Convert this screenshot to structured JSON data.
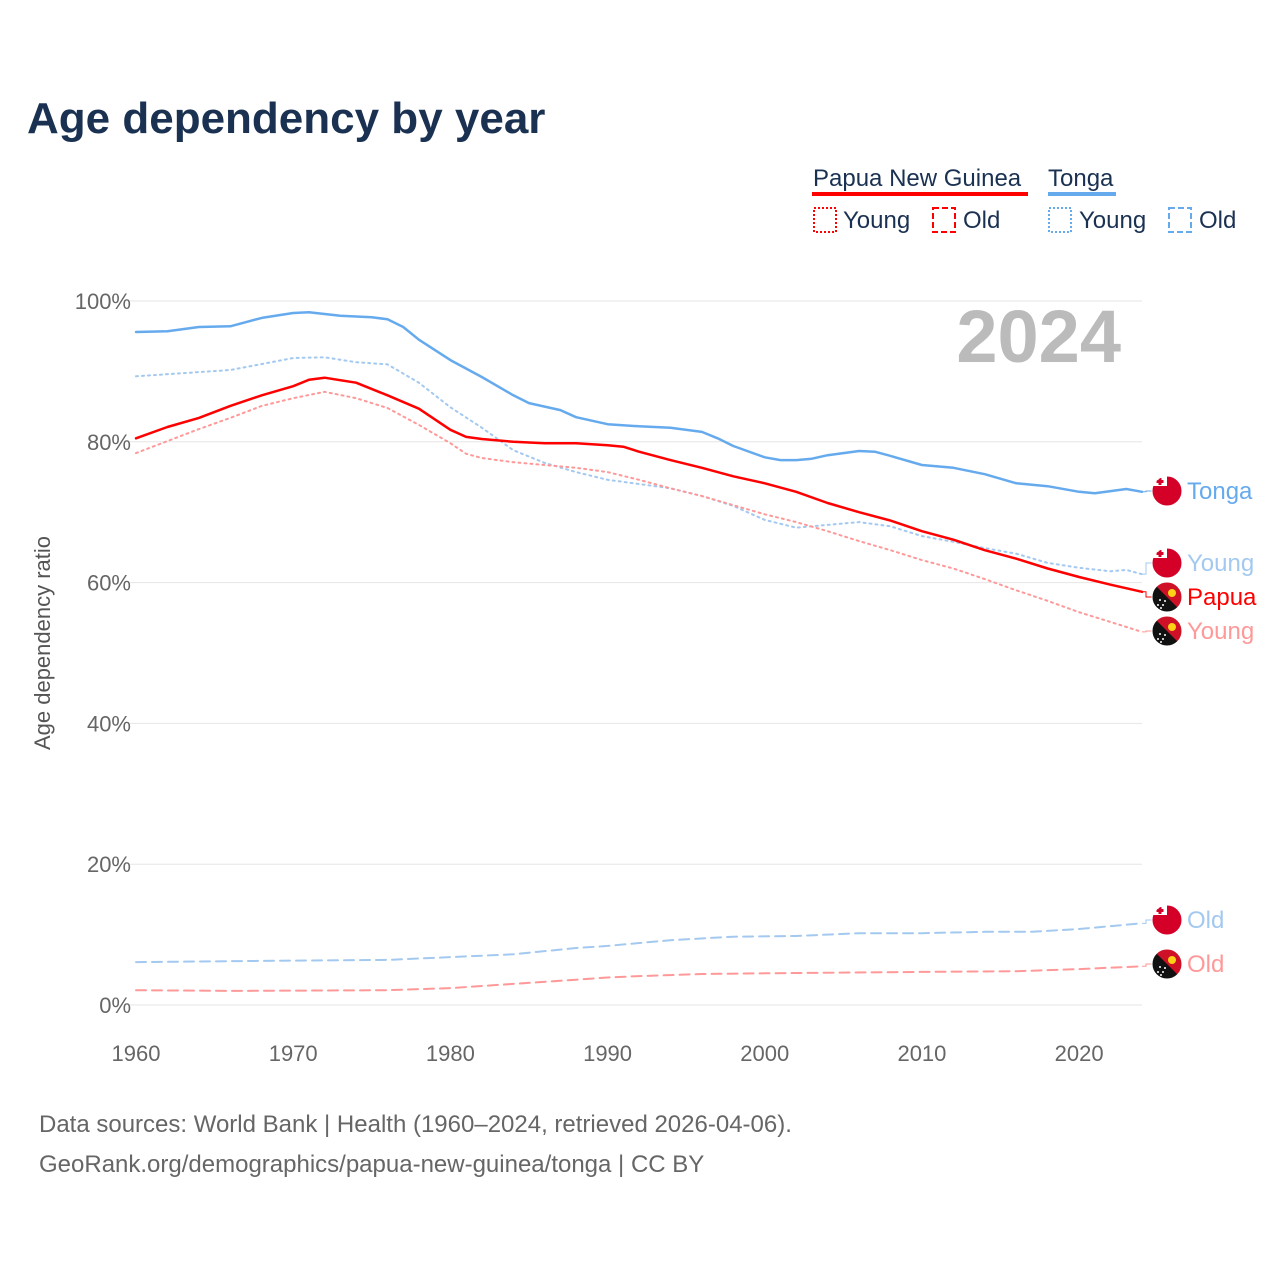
{
  "title": "Age dependency by year",
  "legend": {
    "groups": [
      {
        "name": "Papua New Guinea",
        "color": "#ff0000",
        "young": "Young",
        "old": "Old"
      },
      {
        "name": "Tonga",
        "color": "#66aaee",
        "young": "Young",
        "old": "Old"
      }
    ]
  },
  "year_label": "2024",
  "footer": {
    "line1": "Data sources: World Bank | Health (1960–2024, retrieved 2026-04-06).",
    "line2": "GeoRank.org/demographics/papua-new-guinea/tonga | CC BY"
  },
  "chart_data": {
    "type": "line",
    "title": "Age dependency by year",
    "xlabel": "",
    "ylabel": "Age dependency ratio",
    "xlim": [
      1960,
      2024
    ],
    "ylim": [
      0,
      100
    ],
    "x_ticks": [
      "1960",
      "1970",
      "1980",
      "1990",
      "2000",
      "2010",
      "2020"
    ],
    "y_ticks": [
      "0%",
      "20%",
      "40%",
      "60%",
      "80%",
      "100%"
    ],
    "grid": true,
    "series": [
      {
        "name": "Tonga",
        "end_label": "Tonga",
        "country": "Tonga",
        "kind": "total",
        "color": "#66aaee",
        "x": [
          1960,
          1962,
          1964,
          1966,
          1968,
          1970,
          1971,
          1973,
          1975,
          1976,
          1977,
          1978,
          1980,
          1982,
          1984,
          1985,
          1987,
          1988,
          1990,
          1992,
          1994,
          1996,
          1997,
          1998,
          2000,
          2001,
          2002,
          2003,
          2004,
          2006,
          2007,
          2008,
          2010,
          2012,
          2014,
          2016,
          2018,
          2020,
          2021,
          2022,
          2023,
          2024
        ],
        "y": [
          95.6,
          95.7,
          96.3,
          96.4,
          97.6,
          98.3,
          98.4,
          97.9,
          97.7,
          97.4,
          96.3,
          94.5,
          91.6,
          89.2,
          86.6,
          85.5,
          84.5,
          83.5,
          82.5,
          82.2,
          82.0,
          81.4,
          80.5,
          79.4,
          77.8,
          77.4,
          77.4,
          77.6,
          78.1,
          78.7,
          78.6,
          78.0,
          76.7,
          76.3,
          75.4,
          74.1,
          73.7,
          72.9,
          72.7,
          73.0,
          73.3,
          72.9
        ]
      },
      {
        "name": "Tonga Young",
        "end_label": "Young",
        "country": "Tonga",
        "kind": "young",
        "color": "#a3c9f0",
        "x": [
          1960,
          1966,
          1970,
          1972,
          1974,
          1976,
          1978,
          1980,
          1982,
          1984,
          1986,
          1988,
          1990,
          1992,
          1994,
          1996,
          1998,
          2000,
          2002,
          2004,
          2006,
          2008,
          2010,
          2012,
          2014,
          2016,
          2018,
          2020,
          2022,
          2023,
          2024
        ],
        "y": [
          89.3,
          90.2,
          91.9,
          92.0,
          91.3,
          91.0,
          88.4,
          84.9,
          82.0,
          78.8,
          77.0,
          75.7,
          74.6,
          74.0,
          73.4,
          72.3,
          70.9,
          68.9,
          67.8,
          68.2,
          68.6,
          68.0,
          66.6,
          65.8,
          64.9,
          64.1,
          62.8,
          62.1,
          61.6,
          61.8,
          61.2
        ]
      },
      {
        "name": "Papua New Guinea",
        "end_label": "Papua",
        "country": "Papua New Guinea",
        "kind": "total",
        "color": "#ff0000",
        "x": [
          1960,
          1962,
          1964,
          1966,
          1968,
          1970,
          1971,
          1972,
          1974,
          1976,
          1978,
          1980,
          1981,
          1982,
          1984,
          1986,
          1988,
          1990,
          1991,
          1992,
          1994,
          1996,
          1998,
          2000,
          2002,
          2004,
          2006,
          2008,
          2010,
          2012,
          2014,
          2016,
          2018,
          2020,
          2022,
          2024
        ],
        "y": [
          80.5,
          82.1,
          83.4,
          85.1,
          86.6,
          87.9,
          88.8,
          89.1,
          88.4,
          86.6,
          84.7,
          81.7,
          80.7,
          80.4,
          80.0,
          79.8,
          79.8,
          79.5,
          79.3,
          78.6,
          77.4,
          76.3,
          75.1,
          74.1,
          72.9,
          71.3,
          70.0,
          68.8,
          67.3,
          66.1,
          64.6,
          63.4,
          62.0,
          60.8,
          59.7,
          58.7
        ]
      },
      {
        "name": "Papua New Guinea Young",
        "end_label": "Young",
        "country": "Papua New Guinea",
        "kind": "young",
        "color": "#ff9999",
        "x": [
          1960,
          1962,
          1964,
          1966,
          1968,
          1970,
          1972,
          1974,
          1976,
          1978,
          1980,
          1981,
          1982,
          1984,
          1986,
          1988,
          1990,
          1992,
          1994,
          1996,
          1998,
          2000,
          2002,
          2004,
          2006,
          2008,
          2010,
          2012,
          2014,
          2016,
          2018,
          2020,
          2022,
          2024
        ],
        "y": [
          78.4,
          80.1,
          81.8,
          83.4,
          85.1,
          86.2,
          87.1,
          86.2,
          84.8,
          82.4,
          79.8,
          78.3,
          77.7,
          77.1,
          76.7,
          76.3,
          75.7,
          74.6,
          73.4,
          72.3,
          71.0,
          69.7,
          68.6,
          67.3,
          65.9,
          64.6,
          63.2,
          62.0,
          60.5,
          58.9,
          57.4,
          55.8,
          54.4,
          53.0
        ]
      },
      {
        "name": "Tonga Old",
        "end_label": "Old",
        "country": "Tonga",
        "kind": "old",
        "color": "#a3c9f0",
        "x": [
          1960,
          1970,
          1976,
          1980,
          1984,
          1988,
          1990,
          1994,
          1998,
          2002,
          2006,
          2010,
          2014,
          2017,
          2020,
          2024
        ],
        "y": [
          6.1,
          6.3,
          6.4,
          6.8,
          7.2,
          8.1,
          8.4,
          9.2,
          9.7,
          9.8,
          10.2,
          10.2,
          10.4,
          10.4,
          10.8,
          11.6
        ]
      },
      {
        "name": "Papua New Guinea Old",
        "end_label": "Old",
        "country": "Papua New Guinea",
        "kind": "old",
        "color": "#ff9999",
        "x": [
          1960,
          1966,
          1976,
          1980,
          1984,
          1988,
          1990,
          1992,
          1996,
          2000,
          2010,
          2016,
          2020,
          2024
        ],
        "y": [
          2.1,
          2.0,
          2.1,
          2.4,
          3.0,
          3.6,
          3.9,
          4.1,
          4.4,
          4.5,
          4.7,
          4.8,
          5.1,
          5.5
        ]
      }
    ]
  }
}
